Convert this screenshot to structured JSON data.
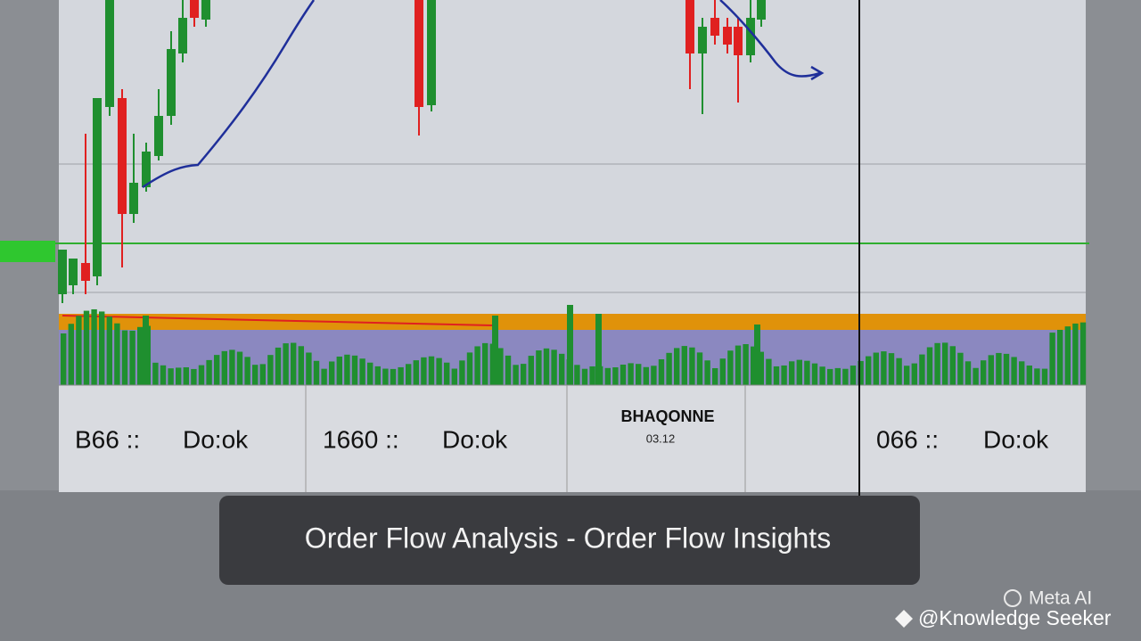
{
  "panels": [
    {
      "code": "B66 ::",
      "label": "Do:ok"
    },
    {
      "code": "1660 ::",
      "label": "Do:ok"
    },
    {
      "title": "BHAQONNE",
      "subtitle": "03.12"
    },
    {
      "code": "066 ::",
      "label": "Do:ok"
    }
  ],
  "caption": "Order Flow Analysis - Order Flow Insights",
  "watermark": {
    "brand": "Meta AI",
    "handle": "@Knowledge Seeker"
  }
}
